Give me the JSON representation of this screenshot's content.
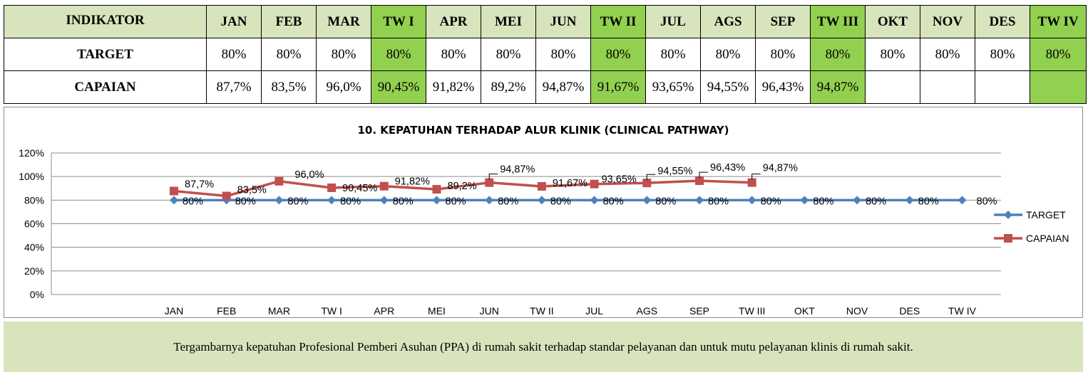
{
  "table": {
    "indicator_header": "INDIKATOR",
    "months": [
      "JAN",
      "FEB",
      "MAR",
      "TW I",
      "APR",
      "MEI",
      "JUN",
      "TW II",
      "JUL",
      "AGS",
      "SEP",
      "TW III",
      "OKT",
      "NOV",
      "DES",
      "TW IV"
    ],
    "quarter_columns": [
      3,
      7,
      11,
      15
    ],
    "rows": [
      {
        "label": "TARGET",
        "values": [
          "80%",
          "80%",
          "80%",
          "80%",
          "80%",
          "80%",
          "80%",
          "80%",
          "80%",
          "80%",
          "80%",
          "80%",
          "80%",
          "80%",
          "80%",
          "80%"
        ]
      },
      {
        "label": "CAPAIAN",
        "values": [
          "87,7%",
          "83,5%",
          "96,0%",
          "90,45%",
          "91,82%",
          "89,2%",
          "94,87%",
          "91,67%",
          "93,65%",
          "94,55%",
          "96,43%",
          "94,87%",
          "",
          "",
          "",
          ""
        ]
      }
    ],
    "colors": {
      "header_bg": "#d8e4bc",
      "quarter_bg": "#92d050"
    }
  },
  "chart_data": {
    "type": "line",
    "title": "10. KEPATUHAN TERHADAP ALUR KLINIK (CLINICAL PATHWAY)",
    "categories": [
      "JAN",
      "FEB",
      "MAR",
      "TW I",
      "APR",
      "MEI",
      "JUN",
      "TW II",
      "JUL",
      "AGS",
      "SEP",
      "TW III",
      "OKT",
      "NOV",
      "DES",
      "TW IV"
    ],
    "ylim": [
      0,
      120
    ],
    "yticks": [
      "0%",
      "20%",
      "40%",
      "60%",
      "80%",
      "100%",
      "120%"
    ],
    "grid": true,
    "legend_position": "right",
    "series": [
      {
        "name": "TARGET",
        "color": "#4f81bd",
        "marker": "diamond",
        "values": [
          80,
          80,
          80,
          80,
          80,
          80,
          80,
          80,
          80,
          80,
          80,
          80,
          80,
          80,
          80,
          80
        ],
        "labels": [
          "80%",
          "80%",
          "80%",
          "80%",
          "80%",
          "80%",
          "80%",
          "80%",
          "80%",
          "80%",
          "80%",
          "80%",
          "80%",
          "80%",
          "80%",
          "80%"
        ]
      },
      {
        "name": "CAPAIAN",
        "color": "#c0504d",
        "marker": "square",
        "values": [
          87.7,
          83.5,
          96.0,
          90.45,
          91.82,
          89.2,
          94.87,
          91.67,
          93.65,
          94.55,
          96.43,
          94.87,
          null,
          null,
          null,
          null
        ],
        "labels": [
          "87,7%",
          "83,5%",
          "96,0%",
          "90,45%",
          "91,82%",
          "89,2%",
          "94,87%",
          "91,67%",
          "93,65%",
          "94,55%",
          "96,43%",
          "94,87%",
          "",
          "",
          "",
          ""
        ]
      }
    ]
  },
  "note": {
    "text": "Tergambarnya kepatuhan Profesional Pemberi Asuhan (PPA) di rumah sakit terhadap standar pelayanan dan untuk mutu pelayanan klinis di rumah sakit.",
    "bg": "#d8e4bc"
  }
}
